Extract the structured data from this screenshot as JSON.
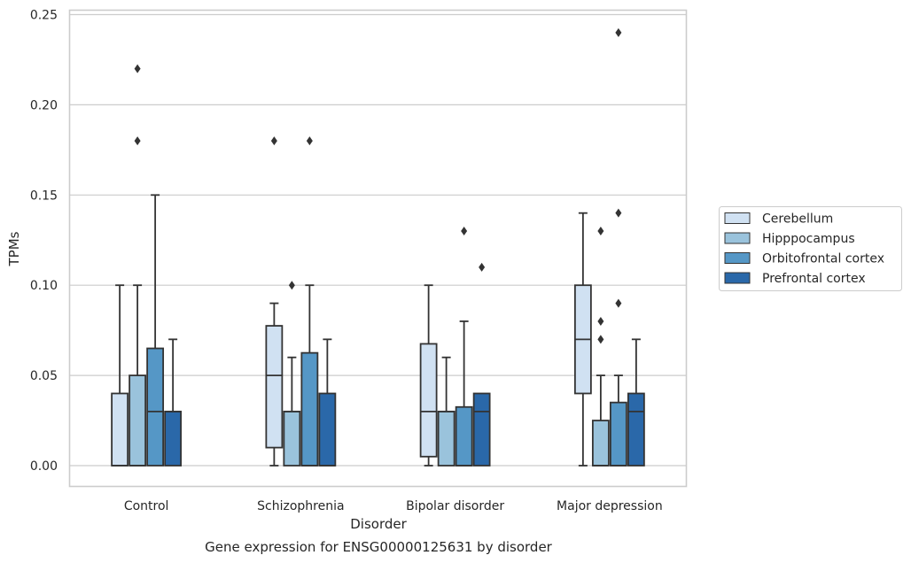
{
  "chart_data": {
    "type": "box",
    "title": "",
    "caption": "Gene expression for ENSG00000125631 by disorder",
    "xlabel": "Disorder",
    "ylabel": "TPMs",
    "ylim": [
      -0.011,
      0.253
    ],
    "yticks": [
      0.0,
      0.05,
      0.1,
      0.15,
      0.2,
      0.25
    ],
    "ytick_labels": [
      "0.00",
      "0.05",
      "0.10",
      "0.15",
      "0.20",
      "0.25"
    ],
    "grid": "horizontal",
    "legend_position": "right",
    "categories": [
      "Control",
      "Schizophrenia",
      "Bipolar disorder",
      "Major depression"
    ],
    "series": [
      {
        "name": "Cerebellum",
        "color": "#d0e1f2",
        "boxes": [
          {
            "whislo": 0,
            "q1": 0,
            "med": 0,
            "q3": 0.04,
            "whishi": 0.1,
            "fliers": []
          },
          {
            "whislo": 0,
            "q1": 0.01,
            "med": 0.05,
            "q3": 0.0775,
            "whishi": 0.09,
            "fliers": [
              0.18
            ]
          },
          {
            "whislo": 0,
            "q1": 0.005,
            "med": 0.03,
            "q3": 0.0675,
            "whishi": 0.1,
            "fliers": []
          },
          {
            "whislo": 0,
            "q1": 0.04,
            "med": 0.07,
            "q3": 0.1,
            "whishi": 0.14,
            "fliers": []
          }
        ]
      },
      {
        "name": "Hipppocampus",
        "color": "#9ac3dc",
        "boxes": [
          {
            "whislo": 0,
            "q1": 0,
            "med": 0,
            "q3": 0.05,
            "whishi": 0.1,
            "fliers": [
              0.18,
              0.22
            ]
          },
          {
            "whislo": 0,
            "q1": 0,
            "med": 0.03,
            "q3": 0.03,
            "whishi": 0.06,
            "fliers": [
              0.1
            ]
          },
          {
            "whislo": 0,
            "q1": 0,
            "med": 0.03,
            "q3": 0.03,
            "whishi": 0.06,
            "fliers": []
          },
          {
            "whislo": 0,
            "q1": 0,
            "med": 0,
            "q3": 0.025,
            "whishi": 0.05,
            "fliers": [
              0.07,
              0.08,
              0.13
            ]
          }
        ]
      },
      {
        "name": "Orbitofrontal cortex",
        "color": "#5597c6",
        "boxes": [
          {
            "whislo": 0,
            "q1": 0,
            "med": 0.03,
            "q3": 0.065,
            "whishi": 0.15,
            "fliers": []
          },
          {
            "whislo": 0,
            "q1": 0,
            "med": 0,
            "q3": 0.0625,
            "whishi": 0.1,
            "fliers": [
              0.18
            ]
          },
          {
            "whislo": 0,
            "q1": 0,
            "med": 0,
            "q3": 0.0325,
            "whishi": 0.08,
            "fliers": [
              0.13
            ]
          },
          {
            "whislo": 0,
            "q1": 0,
            "med": 0,
            "q3": 0.035,
            "whishi": 0.05,
            "fliers": [
              0.09,
              0.14,
              0.24
            ]
          }
        ]
      },
      {
        "name": "Prefrontal cortex",
        "color": "#2a68a9",
        "boxes": [
          {
            "whislo": 0,
            "q1": 0,
            "med": 0.03,
            "q3": 0.03,
            "whishi": 0.07,
            "fliers": []
          },
          {
            "whislo": 0,
            "q1": 0,
            "med": 0,
            "q3": 0.04,
            "whishi": 0.07,
            "fliers": []
          },
          {
            "whislo": 0,
            "q1": 0,
            "med": 0.03,
            "q3": 0.04,
            "whishi": 0.04,
            "fliers": [
              0.11
            ]
          },
          {
            "whislo": 0,
            "q1": 0,
            "med": 0.03,
            "q3": 0.04,
            "whishi": 0.07,
            "fliers": []
          }
        ]
      }
    ],
    "colors": {
      "grid": "#cccccc",
      "frame": "#cccccc",
      "line": "#333333",
      "legend_border": "#cccccc"
    }
  }
}
